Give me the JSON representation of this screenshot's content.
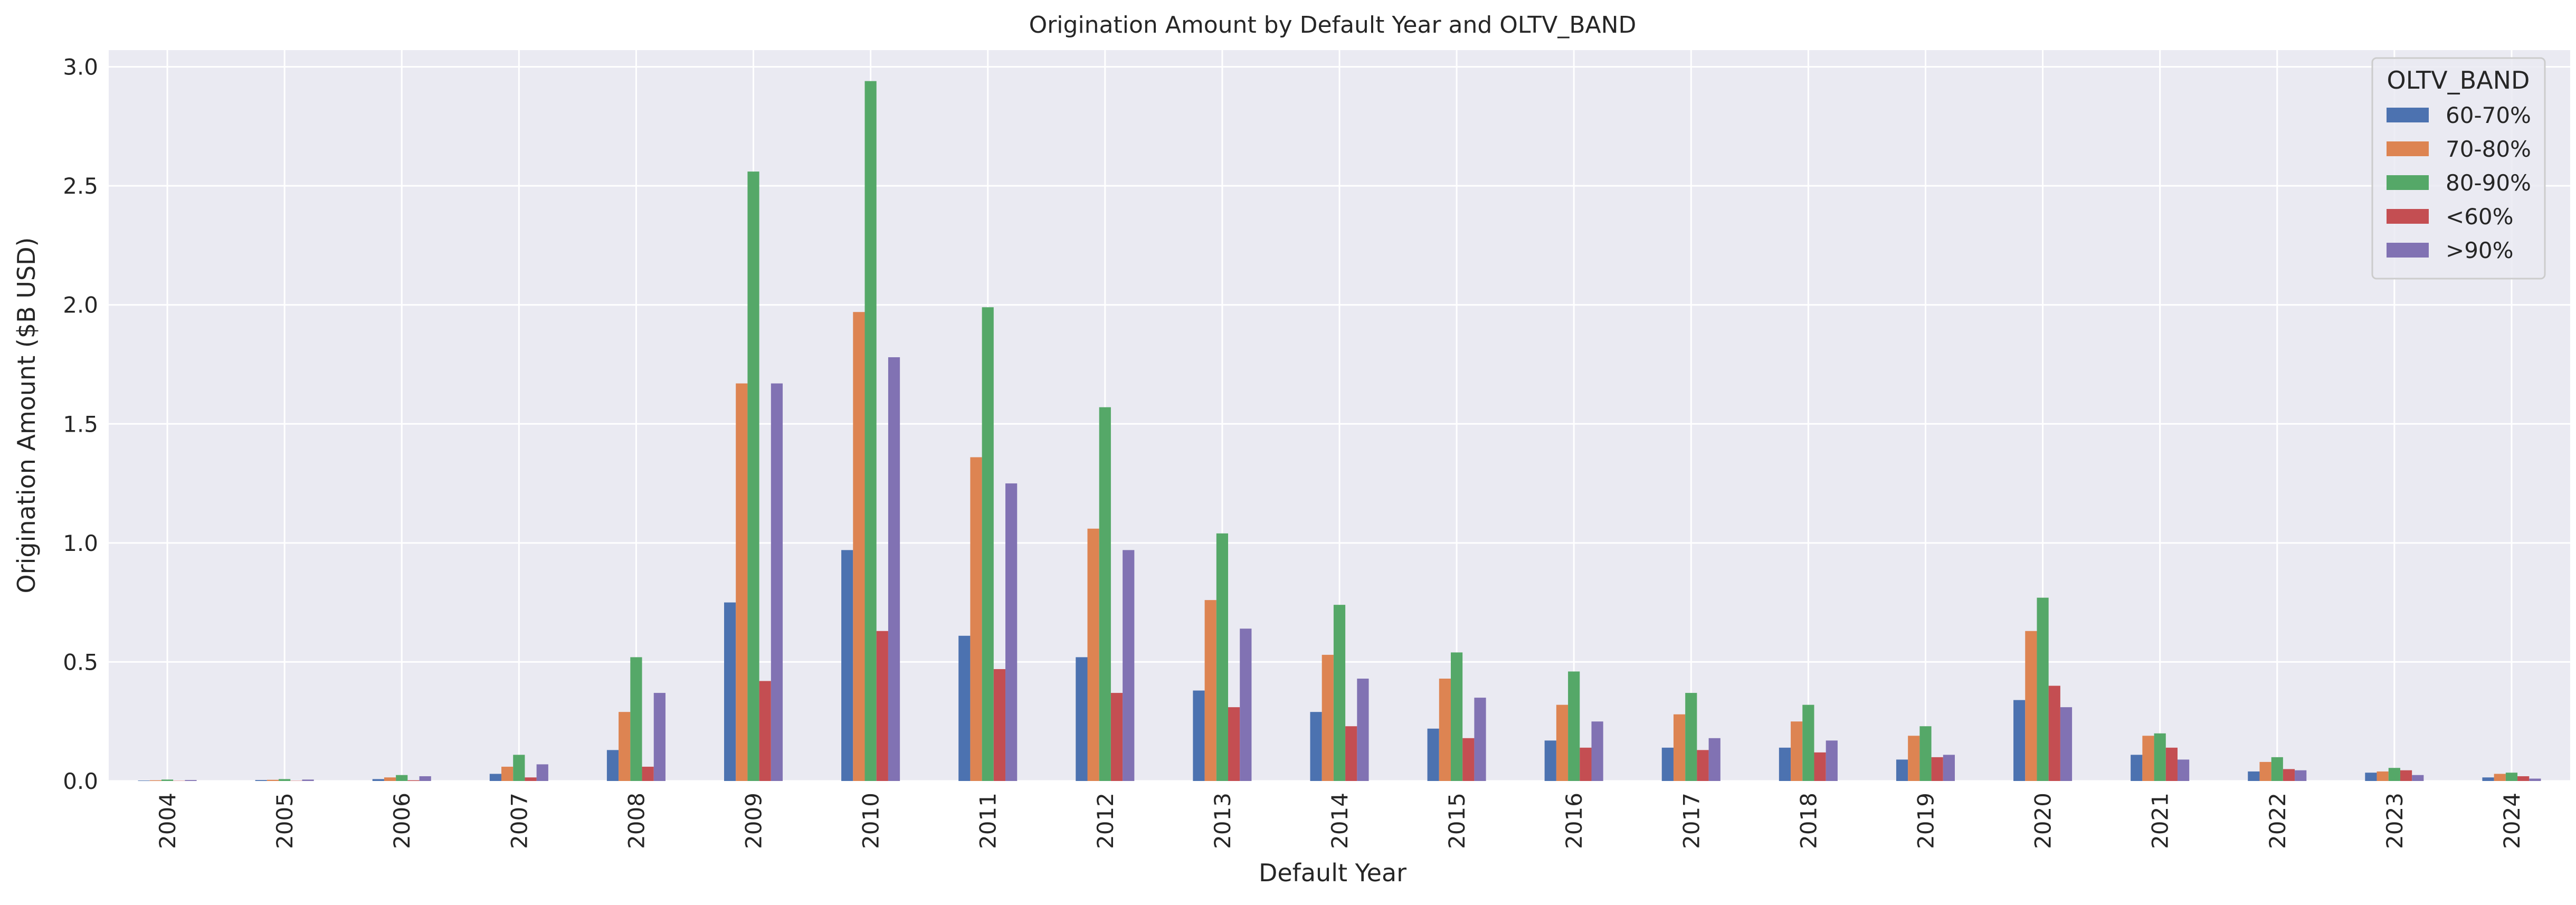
{
  "chart_data": {
    "type": "bar",
    "title": "Origination Amount by Default Year and OLTV_BAND",
    "xlabel": "Default Year",
    "ylabel": "Origination Amount ($B USD)",
    "ylim": [
      0,
      3.07
    ],
    "yticks": [
      "0.0",
      "0.5",
      "1.0",
      "1.5",
      "2.0",
      "2.5",
      "3.0"
    ],
    "grid": true,
    "legend_title": "OLTV_BAND",
    "legend_position": "top-right",
    "categories": [
      "2004",
      "2005",
      "2006",
      "2007",
      "2008",
      "2009",
      "2010",
      "2011",
      "2012",
      "2013",
      "2014",
      "2015",
      "2016",
      "2017",
      "2018",
      "2019",
      "2020",
      "2021",
      "2022",
      "2023",
      "2024"
    ],
    "series": [
      {
        "name": "60-70%",
        "color": "#4c72b0",
        "values": [
          0.002,
          0.004,
          0.008,
          0.03,
          0.13,
          0.75,
          0.97,
          0.61,
          0.52,
          0.38,
          0.29,
          0.22,
          0.17,
          0.14,
          0.14,
          0.09,
          0.34,
          0.11,
          0.04,
          0.035,
          0.015
        ]
      },
      {
        "name": "70-80%",
        "color": "#dd8452",
        "values": [
          0.003,
          0.005,
          0.015,
          0.06,
          0.29,
          1.67,
          1.97,
          1.36,
          1.06,
          0.76,
          0.53,
          0.43,
          0.32,
          0.28,
          0.25,
          0.19,
          0.63,
          0.19,
          0.08,
          0.04,
          0.03
        ]
      },
      {
        "name": "80-90%",
        "color": "#55a868",
        "values": [
          0.006,
          0.008,
          0.025,
          0.11,
          0.52,
          2.56,
          2.94,
          1.99,
          1.57,
          1.04,
          0.74,
          0.54,
          0.46,
          0.37,
          0.32,
          0.23,
          0.77,
          0.2,
          0.1,
          0.055,
          0.035
        ]
      },
      {
        "name": "<60%",
        "color": "#c44e52",
        "values": [
          0.001,
          0.001,
          0.003,
          0.015,
          0.06,
          0.42,
          0.63,
          0.47,
          0.37,
          0.31,
          0.23,
          0.18,
          0.14,
          0.13,
          0.12,
          0.1,
          0.4,
          0.14,
          0.05,
          0.045,
          0.02
        ]
      },
      {
        "name": ">90%",
        "color": "#8172b3",
        "values": [
          0.004,
          0.006,
          0.02,
          0.07,
          0.37,
          1.67,
          1.78,
          1.25,
          0.97,
          0.64,
          0.43,
          0.35,
          0.25,
          0.18,
          0.17,
          0.11,
          0.31,
          0.09,
          0.045,
          0.025,
          0.01
        ]
      }
    ]
  }
}
